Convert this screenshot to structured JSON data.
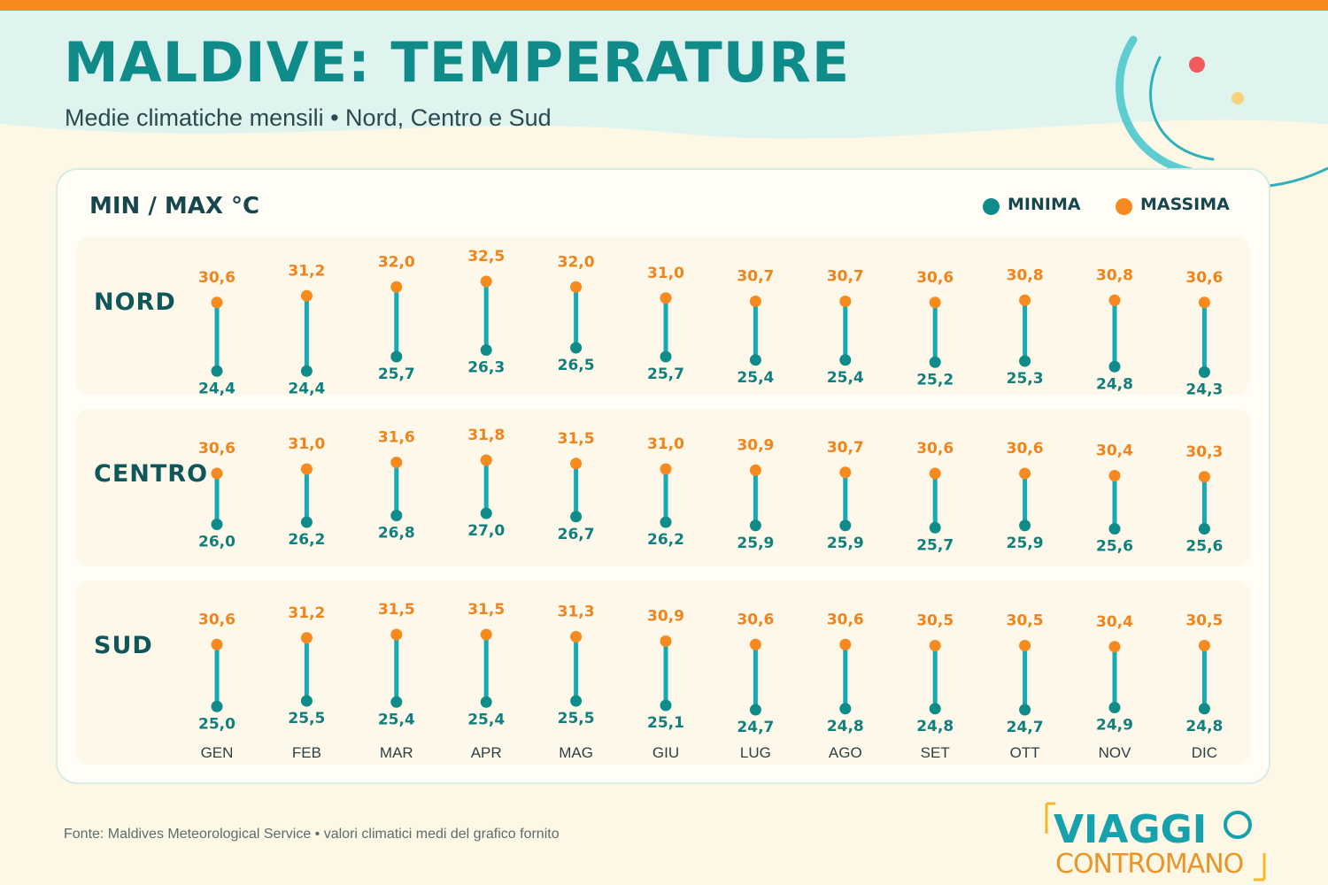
{
  "header": {
    "title": "MALDIVE: TEMPERATURE",
    "subtitle": "Medie climatiche mensili • Nord, Centro e Sud"
  },
  "colors": {
    "teal": "#0f8c8a",
    "orange": "#f68a1f",
    "bar": "#17a9b4",
    "min_text": "#117f7d",
    "max_text": "#f0841c",
    "background": "#fdf7e6"
  },
  "chart_data": {
    "type": "range-dot",
    "unit_label": "MIN / MAX °C",
    "legend": [
      {
        "label": "MINIMA",
        "color": "#0f8c8a"
      },
      {
        "label": "MASSIMA",
        "color": "#f68a1f"
      }
    ],
    "legend_position": "top-right",
    "categories": [
      "GEN",
      "FEB",
      "MAR",
      "APR",
      "MAG",
      "GIU",
      "LUG",
      "AGO",
      "SET",
      "OTT",
      "NOV",
      "DIC"
    ],
    "regions": [
      {
        "name": "NORD",
        "min": [
          24.4,
          24.4,
          25.7,
          26.3,
          26.5,
          25.7,
          25.4,
          25.4,
          25.2,
          25.3,
          24.8,
          24.3
        ],
        "max": [
          30.6,
          31.2,
          32.0,
          32.5,
          32.0,
          31.0,
          30.7,
          30.7,
          30.6,
          30.8,
          30.8,
          30.6
        ],
        "min_labels": [
          "24,4",
          "24,4",
          "25,7",
          "26,3",
          "26,5",
          "25,7",
          "25,4",
          "25,4",
          "25,2",
          "25,3",
          "24,8",
          "24,3"
        ],
        "max_labels": [
          "30,6",
          "31,2",
          "32,0",
          "32,5",
          "32,0",
          "31,0",
          "30,7",
          "30,7",
          "30,6",
          "30,8",
          "30,8",
          "30,6"
        ]
      },
      {
        "name": "CENTRO",
        "min": [
          26.0,
          26.2,
          26.8,
          27.0,
          26.7,
          26.2,
          25.9,
          25.9,
          25.7,
          25.9,
          25.6,
          25.6
        ],
        "max": [
          30.6,
          31.0,
          31.6,
          31.8,
          31.5,
          31.0,
          30.9,
          30.7,
          30.6,
          30.6,
          30.4,
          30.3
        ],
        "min_labels": [
          "26,0",
          "26,2",
          "26,8",
          "27,0",
          "26,7",
          "26,2",
          "25,9",
          "25,9",
          "25,7",
          "25,9",
          "25,6",
          "25,6"
        ],
        "max_labels": [
          "30,6",
          "31,0",
          "31,6",
          "31,8",
          "31,5",
          "31,0",
          "30,9",
          "30,7",
          "30,6",
          "30,6",
          "30,4",
          "30,3"
        ]
      },
      {
        "name": "SUD",
        "min": [
          25.0,
          25.5,
          25.4,
          25.4,
          25.5,
          25.1,
          24.7,
          24.8,
          24.8,
          24.7,
          24.9,
          24.8
        ],
        "max": [
          30.6,
          31.2,
          31.5,
          31.5,
          31.3,
          30.9,
          30.6,
          30.6,
          30.5,
          30.5,
          30.4,
          30.5
        ],
        "min_labels": [
          "25,0",
          "25,5",
          "25,4",
          "25,4",
          "25,5",
          "25,1",
          "24,7",
          "24,8",
          "24,8",
          "24,7",
          "24,9",
          "24,8"
        ],
        "max_labels": [
          "30,6",
          "31,2",
          "31,5",
          "31,5",
          "31,3",
          "30,9",
          "30,6",
          "30,6",
          "30,5",
          "30,5",
          "30,4",
          "30,5"
        ]
      }
    ]
  },
  "footer": {
    "source": "Fonte: Maldives Meteorological Service • valori climatici medi del grafico fornito"
  },
  "logo": {
    "line1": "VIAGGI",
    "line2": "CONTROMANO"
  }
}
